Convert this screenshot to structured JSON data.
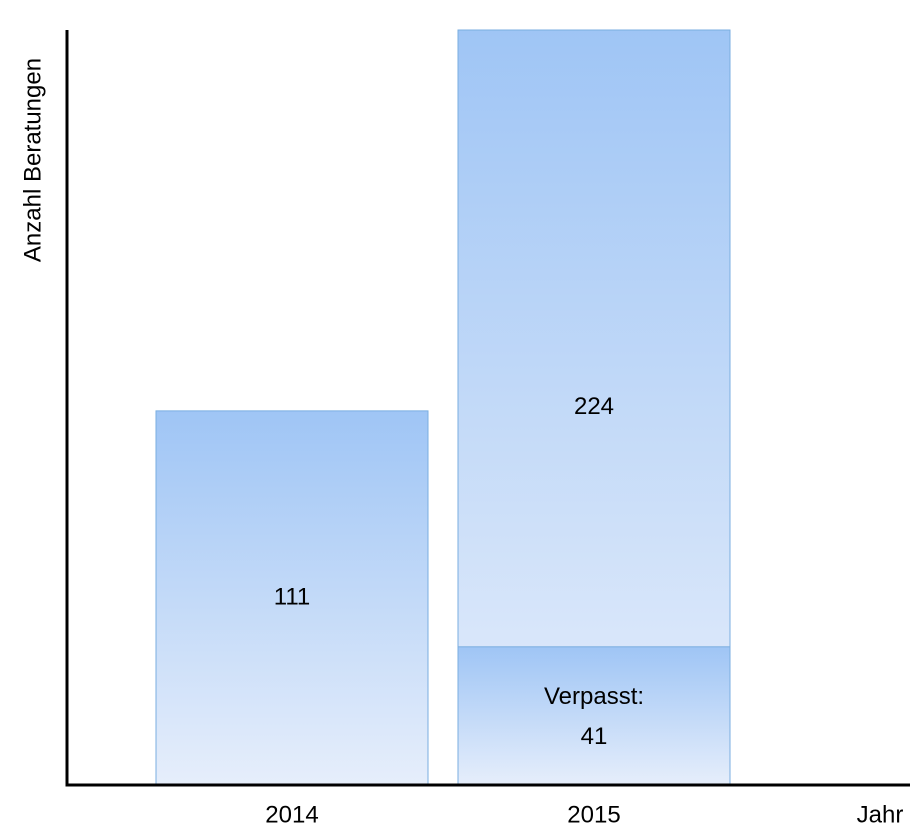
{
  "chart_data": {
    "type": "bar",
    "x_label": "Jahr",
    "y_label": "Anzahl Beratungen",
    "categories": [
      "2014",
      "2015"
    ],
    "ylim": [
      0,
      224
    ],
    "overlap": true,
    "series": [
      {
        "values": [
          111,
          224
        ],
        "color": "#9fc5f5"
      },
      {
        "name": "Verpasst:",
        "values": [
          null,
          41
        ],
        "color": "#9fc5f5"
      }
    ]
  }
}
